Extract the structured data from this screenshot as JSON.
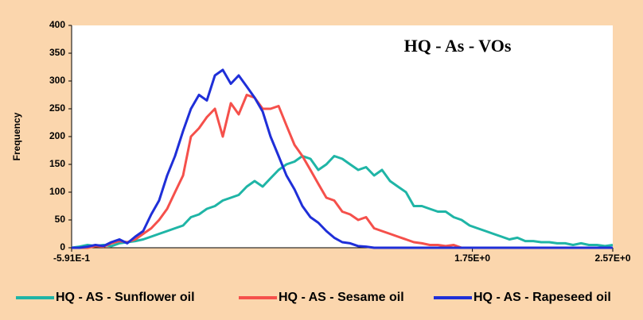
{
  "chart_data": {
    "type": "line",
    "title": "HQ - As - VOs",
    "y_label": "Frequency",
    "x": [
      -0.591,
      -0.545,
      -0.498,
      -0.452,
      -0.405,
      -0.359,
      -0.312,
      -0.266,
      -0.219,
      -0.173,
      -0.126,
      -0.08,
      -0.033,
      0.013,
      0.06,
      0.106,
      0.153,
      0.199,
      0.246,
      0.292,
      0.339,
      0.385,
      0.432,
      0.478,
      0.525,
      0.571,
      0.618,
      0.664,
      0.711,
      0.757,
      0.804,
      0.85,
      0.897,
      0.943,
      0.99,
      1.036,
      1.083,
      1.129,
      1.176,
      1.222,
      1.269,
      1.315,
      1.362,
      1.408,
      1.455,
      1.501,
      1.548,
      1.594,
      1.641,
      1.687,
      1.734,
      1.78,
      1.827,
      1.873,
      1.92,
      1.966,
      2.013,
      2.059,
      2.106,
      2.152,
      2.199,
      2.245,
      2.292,
      2.338,
      2.385,
      2.431,
      2.478,
      2.524,
      2.57
    ],
    "series": [
      {
        "name": "HQ - AS - Sunflower oil",
        "color": "#1fb5a6",
        "values": [
          0,
          2,
          5,
          3,
          5,
          3,
          8,
          10,
          12,
          15,
          20,
          25,
          30,
          35,
          40,
          55,
          60,
          70,
          75,
          85,
          90,
          95,
          110,
          120,
          110,
          125,
          140,
          150,
          155,
          165,
          160,
          140,
          150,
          165,
          160,
          150,
          140,
          145,
          130,
          140,
          120,
          110,
          100,
          75,
          75,
          70,
          65,
          65,
          55,
          50,
          40,
          35,
          30,
          25,
          20,
          15,
          18,
          12,
          12,
          10,
          10,
          8,
          8,
          5,
          8,
          5,
          5,
          3,
          5
        ]
      },
      {
        "name": "HQ - AS - Sesame oil",
        "color": "#f5504b",
        "values": [
          0,
          0,
          0,
          3,
          2,
          8,
          12,
          10,
          15,
          25,
          35,
          50,
          70,
          100,
          130,
          200,
          215,
          235,
          250,
          200,
          260,
          240,
          275,
          270,
          250,
          250,
          255,
          220,
          185,
          165,
          140,
          115,
          90,
          85,
          65,
          60,
          50,
          55,
          35,
          30,
          25,
          20,
          15,
          10,
          8,
          5,
          5,
          3,
          5,
          0,
          0,
          0,
          0,
          0,
          0,
          0,
          0,
          0,
          0,
          0,
          0,
          0,
          0,
          0,
          0,
          0,
          0,
          0,
          0
        ]
      },
      {
        "name": "HQ - AS - Rapeseed oil",
        "color": "#1f2fd8",
        "values": [
          0,
          0,
          2,
          5,
          3,
          10,
          15,
          8,
          20,
          30,
          60,
          85,
          130,
          165,
          210,
          250,
          275,
          265,
          310,
          320,
          295,
          310,
          290,
          270,
          245,
          200,
          165,
          130,
          105,
          75,
          55,
          45,
          30,
          18,
          10,
          8,
          3,
          2,
          0,
          0,
          0,
          0,
          0,
          0,
          0,
          0,
          0,
          0,
          0,
          0,
          0,
          0,
          0,
          0,
          0,
          0,
          0,
          0,
          0,
          0,
          0,
          0,
          0,
          0,
          0,
          0,
          0,
          0,
          0
        ]
      }
    ],
    "xlim": [
      -0.591,
      2.57
    ],
    "xticks": [
      {
        "value": -0.591,
        "label": "-5.91E-1"
      },
      {
        "value": 1.75,
        "label": "1.75E+0"
      },
      {
        "value": 2.57,
        "label": "2.57E+0"
      }
    ],
    "ylim": [
      0,
      400
    ],
    "yticks": [
      0,
      50,
      100,
      150,
      200,
      250,
      300,
      350,
      400
    ],
    "legend": "bottom"
  }
}
